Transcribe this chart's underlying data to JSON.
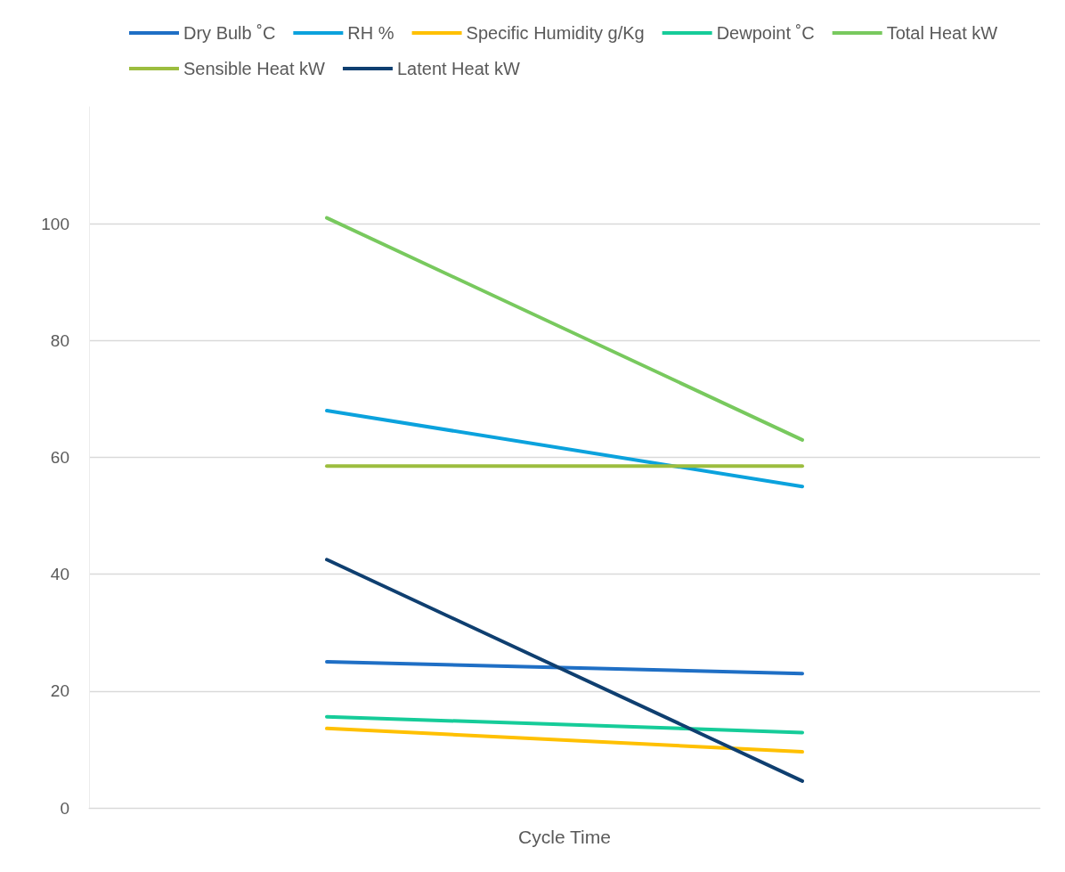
{
  "chart_data": {
    "type": "line",
    "xlabel": "Cycle Time",
    "categories": [
      null,
      null
    ],
    "series": [
      {
        "name": "Dry Bulb ˚C",
        "color": "#1f6fc5",
        "values": [
          25,
          23
        ]
      },
      {
        "name": "RH %",
        "color": "#0ba2dd",
        "values": [
          68,
          55
        ]
      },
      {
        "name": "Specific Humidity g/Kg",
        "color": "#ffc000",
        "values": [
          13.6,
          9.6
        ]
      },
      {
        "name": "Dewpoint ˚C",
        "color": "#16cc99",
        "values": [
          15.6,
          12.9
        ]
      },
      {
        "name": "Total Heat kW",
        "color": "#78c95e",
        "values": [
          101,
          63
        ]
      },
      {
        "name": "Sensible Heat kW",
        "color": "#9cbd3f",
        "values": [
          58.5,
          58.5
        ]
      },
      {
        "name": "Latent Heat kW",
        "color": "#0f3f70",
        "values": [
          42.5,
          4.6
        ]
      }
    ],
    "ylim": [
      0,
      120
    ],
    "yticks": [
      0,
      20,
      40,
      60,
      80,
      100
    ],
    "grid": "y",
    "legend": "top",
    "marker": "none",
    "line_style": "solid"
  }
}
